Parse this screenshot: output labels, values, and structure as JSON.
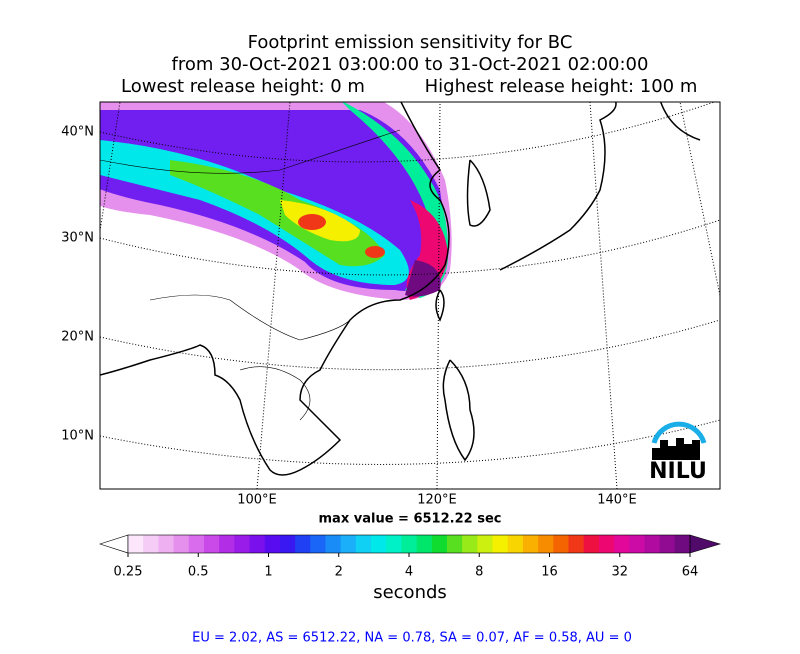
{
  "header": {
    "title_lines": [
      "Footprint emission sensitivity for BC",
      "from 30-Oct-2021 03:00:00 to 31-Oct-2021 02:00:00"
    ],
    "release_low": "Lowest release height: 0 m",
    "release_high": "Highest release height: 100 m"
  },
  "map": {
    "lat_labels": [
      "40°N",
      "30°N",
      "20°N",
      "10°N"
    ],
    "lon_labels": [
      "100°E",
      "120°E",
      "140°E"
    ],
    "max_value": "max value = 6512.22 sec",
    "logo": "NILU"
  },
  "colorbar": {
    "ticks": [
      0.25,
      0.5,
      1,
      2,
      4,
      8,
      16,
      32,
      64
    ],
    "label": "seconds",
    "colors": [
      "#ffffff",
      "#fbe6fb",
      "#f5ccf5",
      "#eeb0f0",
      "#e690ee",
      "#d96cec",
      "#c94ae8",
      "#b12ee6",
      "#9a1ce8",
      "#7a10ec",
      "#5a0cf0",
      "#3a18f2",
      "#2040f4",
      "#1a66f6",
      "#1a8cf8",
      "#1aaff8",
      "#10d0f4",
      "#00e8ea",
      "#00f0c8",
      "#00ee9a",
      "#00e66a",
      "#10dc30",
      "#58e020",
      "#98ea18",
      "#ccf010",
      "#f4f000",
      "#f8d400",
      "#fab000",
      "#f88c00",
      "#f46400",
      "#f03818",
      "#ee1040",
      "#ec0870",
      "#e2089a",
      "#cc0aa6",
      "#b00aa0",
      "#900a92",
      "#700a80",
      "#500a6a"
    ]
  },
  "footer": {
    "stats": "EU = 2.02,  AS = 6512.22,  NA = 0.78,  SA = 0.07,  AF = 0.58,  AU = 0"
  }
}
